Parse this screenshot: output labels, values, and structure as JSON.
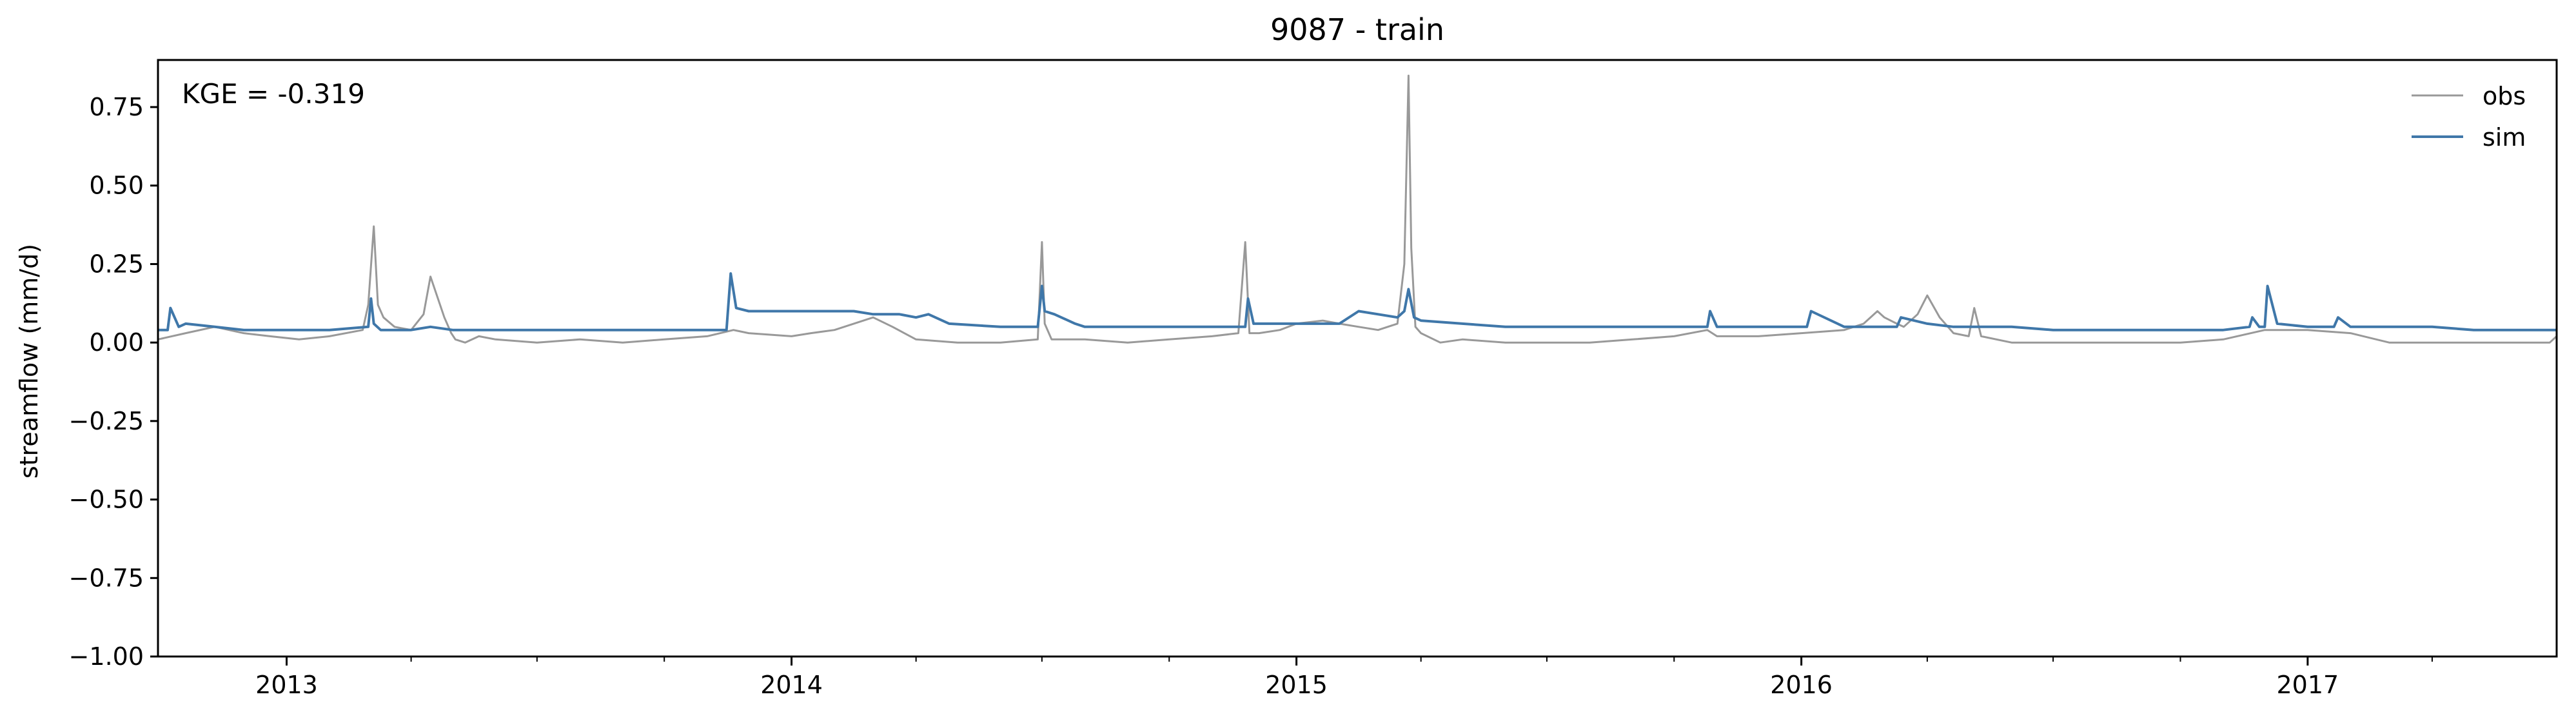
{
  "chart_data": {
    "type": "line",
    "title": "9087 - train",
    "xlabel": "",
    "ylabel": "streamflow (mm/d)",
    "annotation": "KGE = -0.319",
    "xlim": [
      "2012-09-30",
      "2017-06-30"
    ],
    "ylim": [
      -1.0,
      0.9
    ],
    "yticks": [
      -1.0,
      -0.75,
      -0.5,
      -0.25,
      0.0,
      0.25,
      0.5,
      0.75
    ],
    "ytick_labels": [
      "−1.00",
      "−0.75",
      "−0.50",
      "−0.25",
      "0.00",
      "0.25",
      "0.50",
      "0.75"
    ],
    "xticks": [
      "2013-01-01",
      "2014-01-01",
      "2015-01-01",
      "2016-01-01",
      "2017-01-01"
    ],
    "xtick_labels": [
      "2013",
      "2014",
      "2015",
      "2016",
      "2017"
    ],
    "minor_xticks": [
      "2013-04-01",
      "2013-07-01",
      "2013-10-01",
      "2014-04-01",
      "2014-07-01",
      "2014-10-01",
      "2015-04-01",
      "2015-07-01",
      "2015-10-01",
      "2016-04-01",
      "2016-07-01",
      "2016-10-01",
      "2017-04-01"
    ],
    "grid": false,
    "legend": {
      "position": "top-right",
      "entries": [
        "obs",
        "sim"
      ]
    },
    "colors": {
      "obs": "#999999",
      "sim": "#3f77a9"
    },
    "series": [
      {
        "name": "obs",
        "x": [
          "2012-09-30",
          "2012-10-20",
          "2012-11-10",
          "2012-12-01",
          "2012-12-20",
          "2013-01-10",
          "2013-02-01",
          "2013-02-25",
          "2013-03-01",
          "2013-03-05",
          "2013-03-08",
          "2013-03-12",
          "2013-03-20",
          "2013-04-01",
          "2013-04-10",
          "2013-04-15",
          "2013-04-25",
          "2013-04-30",
          "2013-05-03",
          "2013-05-10",
          "2013-05-20",
          "2013-06-01",
          "2013-07-01",
          "2013-08-01",
          "2013-09-01",
          "2013-10-01",
          "2013-11-01",
          "2013-11-20",
          "2013-12-01",
          "2014-01-01",
          "2014-01-15",
          "2014-02-01",
          "2014-02-15",
          "2014-03-01",
          "2014-03-15",
          "2014-04-01",
          "2014-05-01",
          "2014-06-01",
          "2014-06-28",
          "2014-07-01",
          "2014-07-03",
          "2014-07-08",
          "2014-08-01",
          "2014-09-01",
          "2014-10-01",
          "2014-11-01",
          "2014-11-20",
          "2014-11-25",
          "2014-11-28",
          "2014-12-05",
          "2014-12-20",
          "2015-01-01",
          "2015-01-20",
          "2015-02-01",
          "2015-02-15",
          "2015-03-01",
          "2015-03-15",
          "2015-03-20",
          "2015-03-23",
          "2015-03-25",
          "2015-03-28",
          "2015-04-01",
          "2015-04-15",
          "2015-05-01",
          "2015-06-01",
          "2015-07-01",
          "2015-08-01",
          "2015-09-01",
          "2015-10-01",
          "2015-10-25",
          "2015-11-01",
          "2015-12-01",
          "2016-01-01",
          "2016-02-01",
          "2016-02-15",
          "2016-02-25",
          "2016-03-01",
          "2016-03-10",
          "2016-03-15",
          "2016-03-25",
          "2016-04-01",
          "2016-04-10",
          "2016-04-20",
          "2016-05-01",
          "2016-05-05",
          "2016-05-10",
          "2016-06-01",
          "2016-07-01",
          "2016-08-01",
          "2016-09-01",
          "2016-10-01",
          "2016-11-01",
          "2016-12-01",
          "2017-01-01",
          "2017-02-01",
          "2017-03-01",
          "2017-04-01",
          "2017-05-01",
          "2017-06-01",
          "2017-06-25",
          "2017-06-30"
        ],
        "values": [
          0.01,
          0.03,
          0.05,
          0.03,
          0.02,
          0.01,
          0.02,
          0.04,
          0.12,
          0.37,
          0.12,
          0.08,
          0.05,
          0.04,
          0.09,
          0.21,
          0.08,
          0.03,
          0.01,
          0.0,
          0.02,
          0.01,
          0.0,
          0.01,
          0.0,
          0.01,
          0.02,
          0.04,
          0.03,
          0.02,
          0.03,
          0.04,
          0.06,
          0.08,
          0.05,
          0.01,
          0.0,
          0.0,
          0.01,
          0.32,
          0.06,
          0.01,
          0.01,
          0.0,
          0.01,
          0.02,
          0.03,
          0.32,
          0.03,
          0.03,
          0.04,
          0.06,
          0.07,
          0.06,
          0.05,
          0.04,
          0.06,
          0.25,
          0.85,
          0.3,
          0.05,
          0.03,
          0.0,
          0.01,
          0.0,
          0.0,
          0.0,
          0.01,
          0.02,
          0.04,
          0.02,
          0.02,
          0.03,
          0.04,
          0.06,
          0.1,
          0.08,
          0.06,
          0.05,
          0.09,
          0.15,
          0.08,
          0.03,
          0.02,
          0.11,
          0.02,
          0.0,
          0.0,
          0.0,
          0.0,
          0.0,
          0.01,
          0.04,
          0.04,
          0.03,
          0.0,
          0.0,
          0.0,
          0.0,
          0.0,
          0.02
        ]
      },
      {
        "name": "sim",
        "x": [
          "2012-09-30",
          "2012-10-01",
          "2012-10-07",
          "2012-10-09",
          "2012-10-15",
          "2012-10-20",
          "2012-11-10",
          "2012-12-01",
          "2013-01-01",
          "2013-02-01",
          "2013-03-01",
          "2013-03-03",
          "2013-03-05",
          "2013-03-10",
          "2013-04-01",
          "2013-04-15",
          "2013-05-01",
          "2013-06-01",
          "2013-07-01",
          "2013-08-01",
          "2013-09-01",
          "2013-10-01",
          "2013-11-15",
          "2013-11-18",
          "2013-11-22",
          "2013-12-01",
          "2014-01-01",
          "2014-02-01",
          "2014-02-15",
          "2014-03-01",
          "2014-03-20",
          "2014-04-01",
          "2014-04-10",
          "2014-04-25",
          "2014-06-01",
          "2014-06-28",
          "2014-07-01",
          "2014-07-03",
          "2014-07-10",
          "2014-07-25",
          "2014-08-01",
          "2014-09-01",
          "2014-10-01",
          "2014-11-01",
          "2014-11-25",
          "2014-11-27",
          "2014-12-01",
          "2014-12-20",
          "2015-01-15",
          "2015-02-01",
          "2015-02-15",
          "2015-03-01",
          "2015-03-15",
          "2015-03-20",
          "2015-03-23",
          "2015-03-27",
          "2015-04-01",
          "2015-05-01",
          "2015-06-01",
          "2015-07-01",
          "2015-08-01",
          "2015-09-01",
          "2015-10-01",
          "2015-10-25",
          "2015-10-27",
          "2015-11-01",
          "2015-12-01",
          "2016-01-01",
          "2016-01-05",
          "2016-01-08",
          "2016-02-01",
          "2016-03-01",
          "2016-03-10",
          "2016-03-13",
          "2016-04-01",
          "2016-04-20",
          "2016-05-01",
          "2016-06-01",
          "2016-07-01",
          "2016-08-01",
          "2016-09-01",
          "2016-10-01",
          "2016-11-01",
          "2016-11-20",
          "2016-11-22",
          "2016-11-27",
          "2016-12-01",
          "2016-12-03",
          "2016-12-10",
          "2017-01-01",
          "2017-01-20",
          "2017-01-23",
          "2017-02-01",
          "2017-03-01",
          "2017-04-01",
          "2017-05-01",
          "2017-06-01",
          "2017-06-28",
          "2017-06-30"
        ],
        "values": [
          0.04,
          0.04,
          0.04,
          0.11,
          0.05,
          0.06,
          0.05,
          0.04,
          0.04,
          0.04,
          0.05,
          0.14,
          0.06,
          0.04,
          0.04,
          0.05,
          0.04,
          0.04,
          0.04,
          0.04,
          0.04,
          0.04,
          0.04,
          0.22,
          0.11,
          0.1,
          0.1,
          0.1,
          0.1,
          0.09,
          0.09,
          0.08,
          0.09,
          0.06,
          0.05,
          0.05,
          0.18,
          0.1,
          0.09,
          0.06,
          0.05,
          0.05,
          0.05,
          0.05,
          0.05,
          0.14,
          0.06,
          0.06,
          0.06,
          0.06,
          0.1,
          0.09,
          0.08,
          0.1,
          0.17,
          0.08,
          0.07,
          0.06,
          0.05,
          0.05,
          0.05,
          0.05,
          0.05,
          0.05,
          0.1,
          0.05,
          0.05,
          0.05,
          0.05,
          0.1,
          0.05,
          0.05,
          0.05,
          0.08,
          0.06,
          0.05,
          0.05,
          0.05,
          0.04,
          0.04,
          0.04,
          0.04,
          0.04,
          0.05,
          0.08,
          0.05,
          0.05,
          0.18,
          0.06,
          0.05,
          0.05,
          0.08,
          0.05,
          0.05,
          0.05,
          0.04,
          0.04,
          0.04,
          0.04
        ]
      }
    ]
  }
}
